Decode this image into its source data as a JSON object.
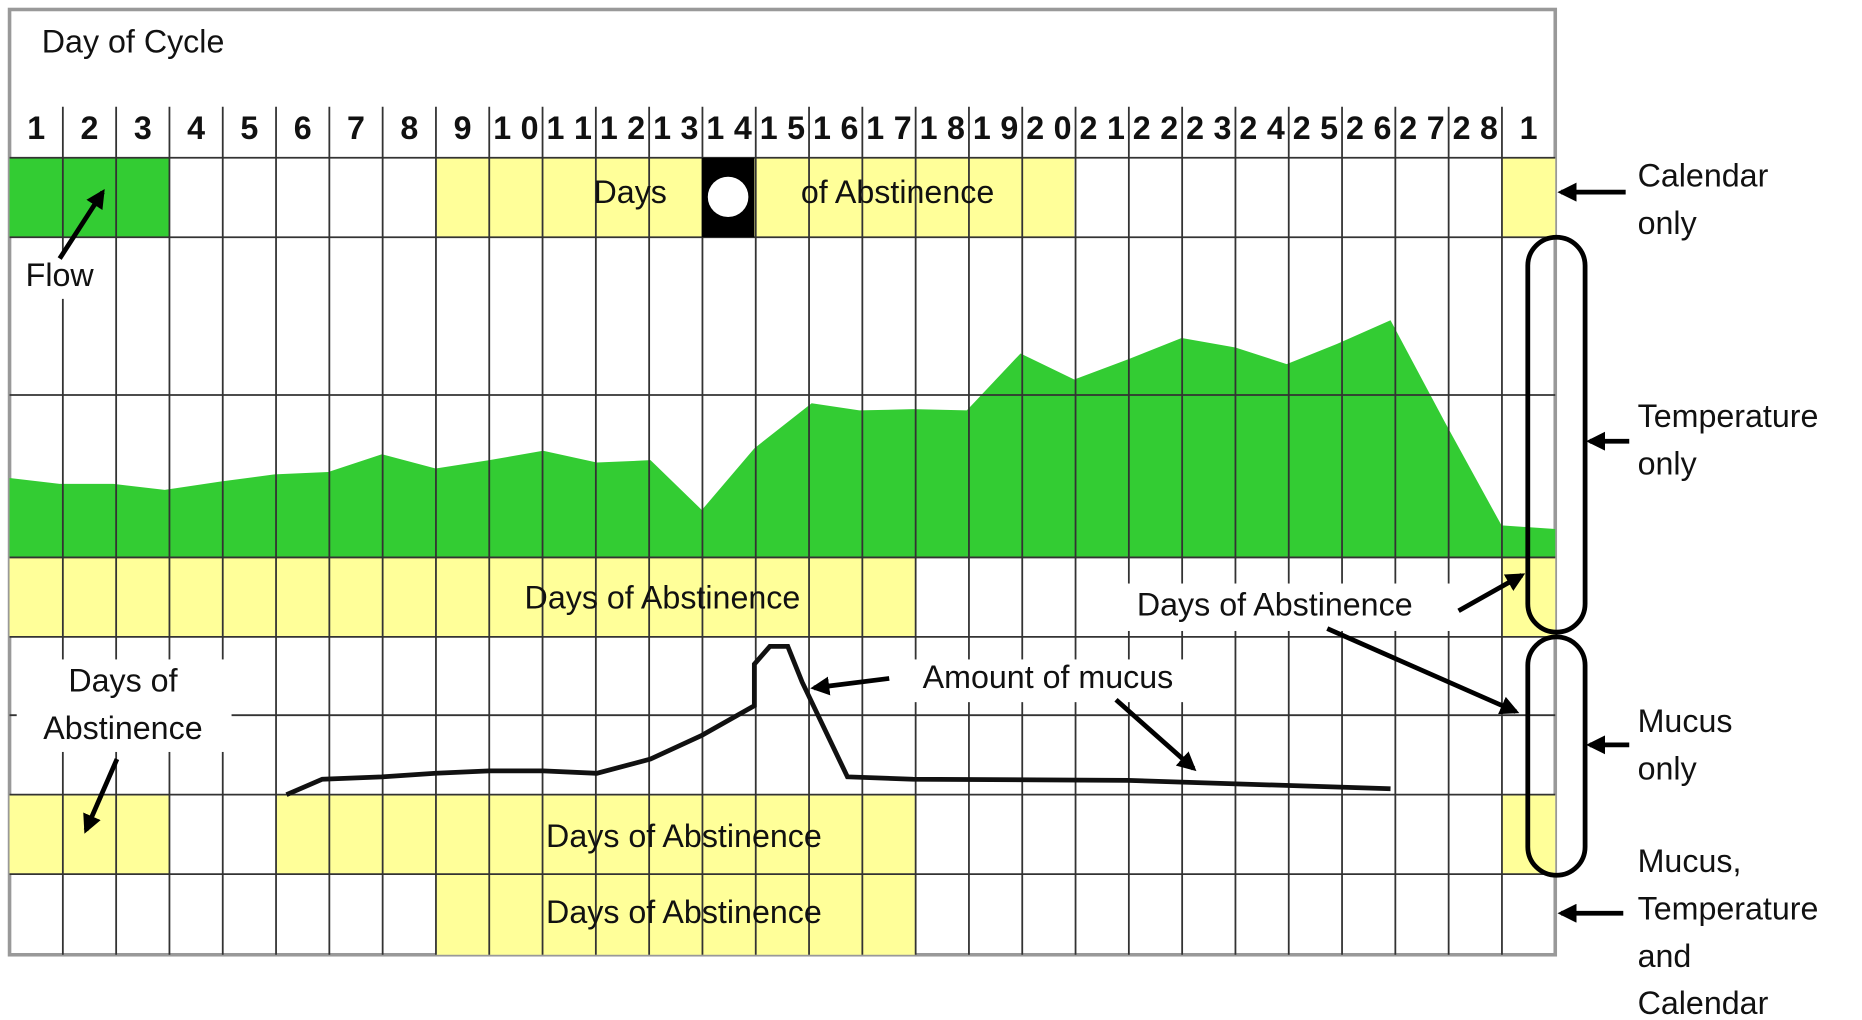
{
  "title": "Day of Cycle",
  "days": [
    1,
    2,
    3,
    4,
    5,
    6,
    7,
    8,
    9,
    10,
    11,
    12,
    13,
    14,
    15,
    16,
    17,
    18,
    19,
    20,
    21,
    22,
    23,
    24,
    25,
    26,
    27,
    28,
    1
  ],
  "calendar": {
    "days_label": "Days",
    "abstinence_label": "of Abstinence"
  },
  "flow_label": "Flow",
  "temperature": {
    "abstinence_label": "Days of Abstinence",
    "late_abstinence_label": "Days of Abstinence"
  },
  "mucus": {
    "amount_label": "Amount of mucus",
    "early_abstinence_label": [
      "Days of",
      "Abstinence"
    ],
    "abstinence_label": "Days of Abstinence"
  },
  "combined": {
    "abstinence_label": "Days of Abstinence"
  },
  "side_labels": {
    "calendar": [
      "Calendar",
      "only"
    ],
    "temperature": [
      "Temperature",
      "only"
    ],
    "mucus": [
      "Mucus",
      "only"
    ],
    "combined": [
      "Mucus,",
      "Temperature",
      "and",
      "Calendar"
    ]
  }
}
